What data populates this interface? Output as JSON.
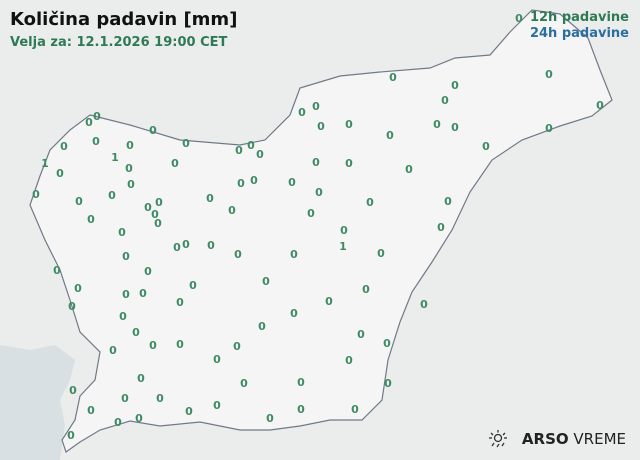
{
  "header": {
    "title": "Količina padavin [mm]",
    "valid_for": "Velja za: 12.1.2026 19:00 CET"
  },
  "legend": {
    "label_12h": "12h padavine",
    "label_24h": "24h padavine",
    "color_12h": "#2e7a55",
    "color_24h": "#2a6fa0"
  },
  "logo": {
    "brand_bold": "ARSO",
    "brand_light": "VREME",
    "icon": "sun-rain-icon"
  },
  "map": {
    "land_color": "#f4f4f4",
    "sea_color": "#d9e0e4",
    "border_color": "#6f7a88"
  },
  "stations_12h_mm": [
    0,
    0,
    0,
    0,
    0,
    0,
    0,
    0,
    0,
    0,
    0,
    0,
    0,
    0,
    0,
    0,
    0,
    0,
    0,
    0,
    0,
    0,
    0,
    0,
    0,
    1,
    0,
    1,
    0,
    0,
    0,
    0,
    0,
    0,
    0,
    0,
    0,
    0,
    0,
    0,
    0,
    0,
    0,
    0,
    0,
    0,
    0,
    0,
    0,
    0,
    0,
    0,
    0,
    0,
    0,
    0,
    0,
    0,
    0,
    1,
    0,
    0,
    0,
    0,
    0,
    0,
    0,
    0,
    0,
    0,
    0,
    0,
    0,
    0,
    0,
    0,
    0,
    0,
    0,
    0,
    0,
    0,
    0,
    0,
    0,
    0,
    0,
    0,
    0,
    0,
    0,
    0,
    0,
    0,
    0,
    0,
    0,
    0,
    0,
    0,
    0,
    0,
    0
  ]
}
